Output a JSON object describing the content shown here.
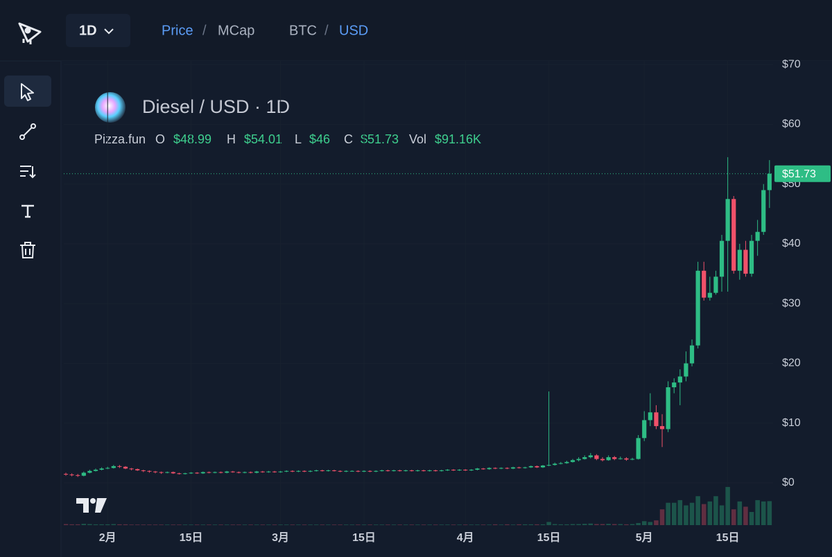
{
  "toolbar": {
    "interval": "1D",
    "price": "Price",
    "separator_1": "/",
    "mcap": "MCap",
    "base": "BTC",
    "separator_2": "/",
    "quote": "USD"
  },
  "chart_data": {
    "type": "candlestick",
    "title": "Diesel / USD · 1D",
    "legend": {
      "source": "Pizza.fun",
      "open_key": "O",
      "open": "$48.99",
      "high_key": "H",
      "high": "$54.01",
      "low_key": "L",
      "low": "$46",
      "close_key": "C",
      "close": "$51.73",
      "volume_key": "Vol",
      "volume": "$91.16K"
    },
    "last_price_label": "$51.73",
    "up_color": "#2ebd85",
    "down_color": "#f0516a",
    "grid": true,
    "xlim": [
      -0.35,
      118.6
    ],
    "xticks": [
      {
        "value": 7,
        "label": "2月"
      },
      {
        "value": 21,
        "label": "15日"
      },
      {
        "value": 36,
        "label": "3月"
      },
      {
        "value": 50,
        "label": "15日"
      },
      {
        "value": 67,
        "label": "4月"
      },
      {
        "value": 81,
        "label": "15日"
      },
      {
        "value": 97,
        "label": "5月"
      },
      {
        "value": 111,
        "label": "15日"
      }
    ],
    "ylim": [
      -7.3,
      70.6
    ],
    "yticks": [
      {
        "value": 0,
        "label": "$0"
      },
      {
        "value": 10,
        "label": "$10"
      },
      {
        "value": 20,
        "label": "$20"
      },
      {
        "value": 30,
        "label": "$30"
      },
      {
        "value": 40,
        "label": "$40"
      },
      {
        "value": 50,
        "label": "$50"
      },
      {
        "value": 60,
        "label": "$60"
      },
      {
        "value": 70,
        "label": "$70"
      }
    ],
    "open": [
      1.5,
      1.4,
      1.3,
      1.2,
      1.7,
      2.0,
      2.2,
      2.4,
      2.5,
      2.8,
      2.7,
      2.4,
      2.3,
      2.1,
      2.0,
      1.9,
      1.8,
      1.7,
      1.8,
      1.6,
      1.5,
      1.6,
      1.7,
      1.6,
      1.8,
      1.7,
      1.8,
      1.7,
      1.9,
      1.8,
      1.7,
      1.8,
      1.7,
      1.9,
      1.8,
      1.9,
      1.8,
      1.9,
      2.0,
      1.9,
      2.0,
      1.9,
      2.0,
      2.1,
      2.0,
      2.1,
      2.0,
      1.9,
      2.0,
      2.0,
      1.9,
      2.0,
      1.9,
      2.0,
      2.1,
      2.0,
      2.1,
      2.0,
      2.1,
      2.0,
      2.1,
      2.0,
      2.1,
      2.0,
      2.1,
      2.2,
      2.1,
      2.2,
      2.1,
      2.2,
      2.4,
      2.3,
      2.5,
      2.4,
      2.5,
      2.4,
      2.6,
      2.5,
      2.6,
      2.8,
      2.6,
      2.9,
      3.0,
      3.2,
      3.3,
      3.5,
      3.8,
      4.0,
      4.3,
      4.6,
      4.0,
      3.8,
      4.3,
      4.0,
      4.1,
      3.9,
      4.0,
      7.5,
      10.5,
      11.8,
      9.5,
      9.0,
      16.0,
      16.8,
      17.8,
      20.0,
      23.0,
      35.5,
      31.0,
      31.8,
      34.5,
      40.5,
      47.5,
      35.5,
      39.0,
      35.0,
      40.5,
      42.0,
      48.99
    ],
    "high": [
      1.7,
      1.6,
      1.5,
      1.9,
      2.2,
      2.4,
      2.6,
      2.7,
      3.0,
      3.0,
      2.8,
      2.5,
      2.4,
      2.2,
      2.1,
      2.0,
      1.9,
      1.9,
      1.9,
      1.7,
      1.7,
      1.8,
      1.8,
      1.9,
      1.9,
      1.9,
      1.9,
      2.0,
      2.0,
      1.9,
      1.9,
      1.9,
      2.0,
      2.0,
      2.0,
      2.0,
      2.0,
      2.1,
      2.1,
      2.1,
      2.1,
      2.1,
      2.2,
      2.2,
      2.2,
      2.2,
      2.1,
      2.1,
      2.1,
      2.1,
      2.1,
      2.1,
      2.1,
      2.2,
      2.2,
      2.2,
      2.2,
      2.2,
      2.2,
      2.2,
      2.2,
      2.2,
      2.2,
      2.2,
      2.3,
      2.3,
      2.3,
      2.3,
      2.3,
      2.5,
      2.5,
      2.6,
      2.6,
      2.6,
      2.6,
      2.7,
      2.7,
      2.7,
      2.9,
      2.9,
      3.0,
      15.3,
      3.4,
      3.5,
      3.7,
      4.0,
      4.3,
      4.6,
      5.0,
      4.8,
      4.3,
      4.6,
      4.5,
      4.4,
      4.3,
      4.2,
      8.0,
      12.0,
      15.0,
      13.0,
      11.5,
      17.0,
      17.5,
      19.0,
      22.0,
      24.0,
      37.0,
      37.0,
      34.5,
      35.5,
      41.5,
      54.5,
      48.0,
      40.0,
      40.5,
      41.5,
      44.0,
      50.0,
      54.01
    ],
    "low": [
      1.2,
      1.1,
      1.0,
      1.1,
      1.6,
      1.9,
      2.1,
      2.3,
      2.4,
      2.5,
      2.3,
      2.1,
      2.0,
      1.8,
      1.7,
      1.6,
      1.5,
      1.6,
      1.5,
      1.4,
      1.4,
      1.5,
      1.5,
      1.5,
      1.6,
      1.6,
      1.6,
      1.6,
      1.7,
      1.6,
      1.6,
      1.6,
      1.6,
      1.7,
      1.7,
      1.7,
      1.7,
      1.8,
      1.8,
      1.8,
      1.8,
      1.8,
      1.9,
      1.9,
      1.9,
      1.9,
      1.8,
      1.8,
      1.9,
      1.8,
      1.8,
      1.8,
      1.8,
      1.9,
      1.9,
      1.9,
      1.9,
      1.9,
      1.9,
      1.9,
      1.9,
      1.9,
      1.9,
      1.9,
      2.0,
      2.0,
      2.0,
      2.0,
      2.0,
      2.1,
      2.2,
      2.2,
      2.3,
      2.3,
      2.3,
      2.3,
      2.4,
      2.4,
      2.5,
      2.5,
      2.5,
      2.8,
      2.9,
      3.1,
      3.2,
      3.4,
      3.6,
      3.9,
      4.1,
      3.8,
      3.6,
      3.7,
      3.8,
      3.9,
      3.7,
      3.8,
      3.9,
      7.0,
      9.5,
      9.0,
      6.0,
      8.5,
      15.0,
      13.0,
      17.0,
      19.5,
      22.5,
      30.5,
      30.5,
      31.5,
      32.0,
      32.0,
      35.0,
      34.0,
      34.5,
      34.5,
      38.0,
      41.5,
      46
    ],
    "close": [
      1.4,
      1.3,
      1.2,
      1.7,
      2.0,
      2.2,
      2.4,
      2.5,
      2.8,
      2.7,
      2.4,
      2.3,
      2.1,
      2.0,
      1.9,
      1.8,
      1.7,
      1.8,
      1.6,
      1.5,
      1.6,
      1.7,
      1.6,
      1.8,
      1.7,
      1.8,
      1.7,
      1.9,
      1.8,
      1.7,
      1.8,
      1.7,
      1.9,
      1.8,
      1.9,
      1.8,
      1.9,
      2.0,
      1.9,
      2.0,
      1.9,
      2.0,
      2.1,
      2.0,
      2.1,
      2.0,
      1.9,
      2.0,
      2.0,
      1.9,
      2.0,
      1.9,
      2.0,
      2.1,
      2.0,
      2.1,
      2.0,
      2.1,
      2.0,
      2.1,
      2.0,
      2.1,
      2.0,
      2.1,
      2.2,
      2.1,
      2.2,
      2.1,
      2.2,
      2.4,
      2.3,
      2.5,
      2.4,
      2.5,
      2.4,
      2.6,
      2.5,
      2.6,
      2.8,
      2.6,
      2.9,
      3.0,
      3.2,
      3.3,
      3.5,
      3.8,
      4.0,
      4.3,
      4.6,
      4.0,
      3.8,
      4.3,
      4.0,
      4.1,
      3.9,
      4.0,
      7.5,
      10.5,
      11.8,
      9.5,
      9.0,
      16.0,
      16.8,
      17.8,
      20.0,
      23.0,
      35.5,
      31.0,
      31.8,
      34.5,
      40.5,
      47.5,
      35.5,
      39.0,
      35.0,
      40.5,
      42.0,
      48.99,
      51.73
    ],
    "volume": [
      4,
      3,
      3,
      5,
      4,
      3,
      3,
      3,
      4,
      3,
      3,
      2,
      2,
      2,
      2,
      2,
      2,
      2,
      2,
      2,
      2,
      2,
      2,
      2,
      2,
      2,
      2,
      2,
      2,
      2,
      2,
      2,
      2,
      2,
      2,
      2,
      2,
      2,
      2,
      2,
      2,
      2,
      2,
      2,
      2,
      2,
      2,
      2,
      2,
      2,
      2,
      2,
      2,
      2,
      2,
      2,
      2,
      2,
      2,
      2,
      2,
      2,
      2,
      2,
      2,
      2,
      2,
      2,
      2,
      2,
      2,
      2,
      3,
      2,
      3,
      2,
      3,
      3,
      3,
      3,
      3,
      12,
      4,
      3,
      3,
      4,
      4,
      5,
      6,
      4,
      4,
      5,
      4,
      4,
      3,
      4,
      8,
      15,
      12,
      18,
      60,
      85,
      85,
      95,
      75,
      85,
      110,
      80,
      90,
      110,
      75,
      145,
      60,
      90,
      70,
      50,
      95,
      90,
      91.16
    ]
  }
}
